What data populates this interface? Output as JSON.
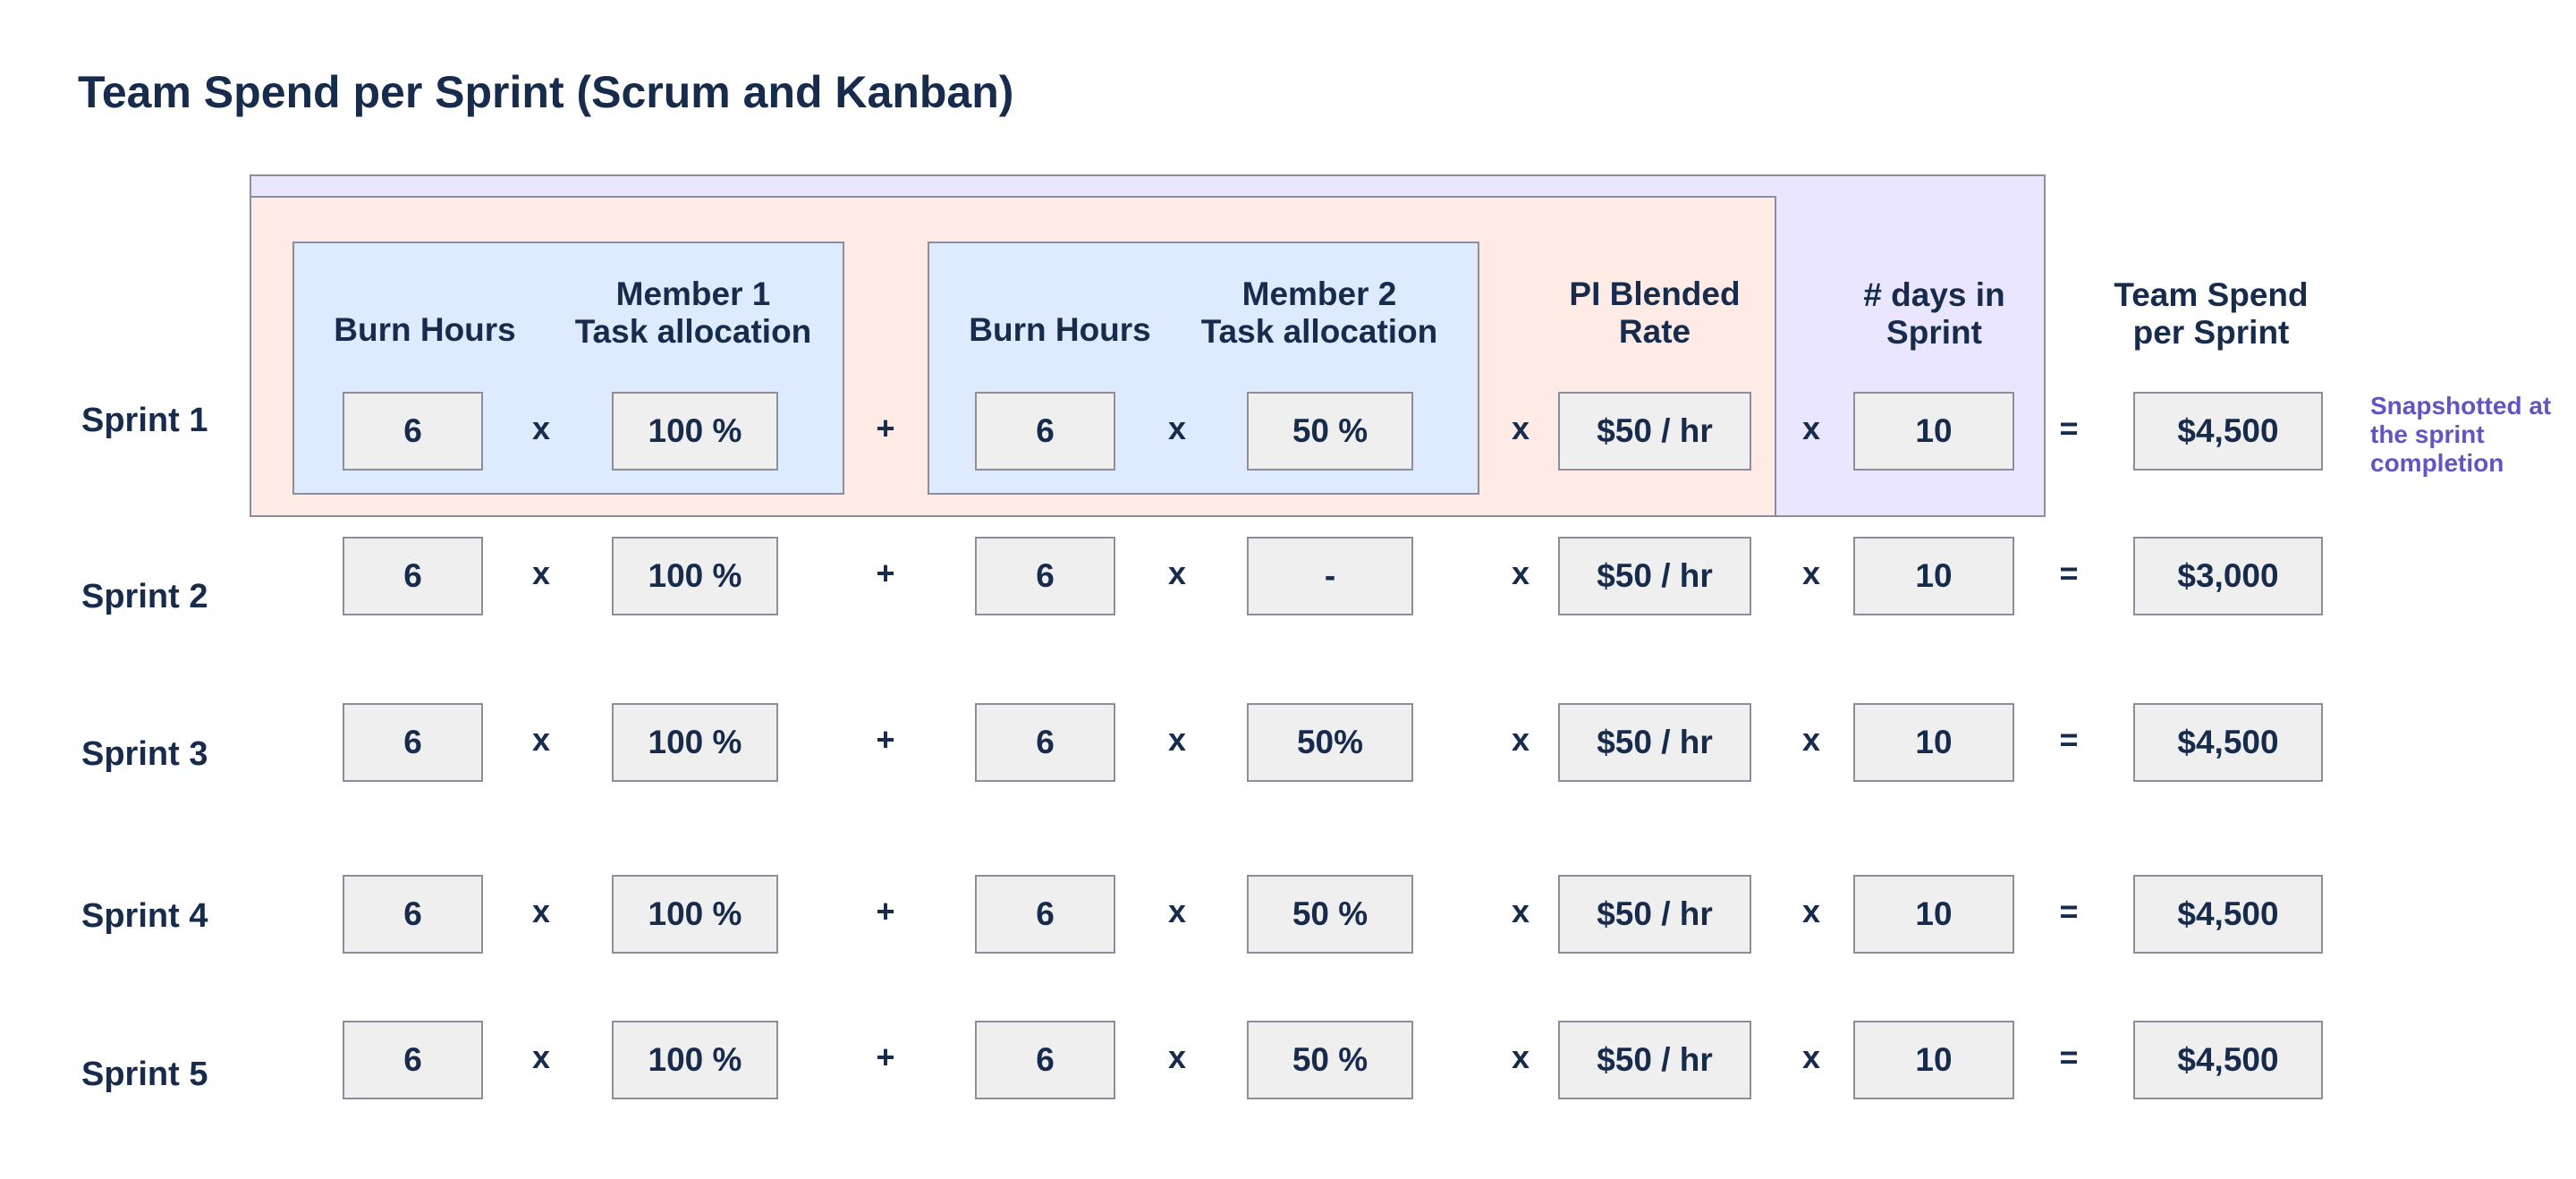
{
  "title": "Team Spend per Sprint (Scrum and Kanban)",
  "headers": {
    "burn_hours_1": "Burn Hours",
    "member1_task_allocation": "Member 1\nTask allocation",
    "burn_hours_2": "Burn Hours",
    "member2_task_allocation": "Member 2\nTask allocation",
    "pi_blended_rate": "PI Blended\nRate",
    "days_in_sprint": "# days in\nSprint",
    "team_spend_per_sprint": "Team Spend\nper Sprint"
  },
  "operators": {
    "times": "x",
    "plus": "+",
    "equals": "="
  },
  "note": "Snapshotted at the sprint completion",
  "colors": {
    "title": "#172B4D",
    "outer_frame": "#EAE6FF",
    "middle_frame": "#FFEBE6",
    "member_frame": "#DEEBFF",
    "cell": "#EFEFEF",
    "note": "#6554C0"
  },
  "rows": [
    {
      "label": "Sprint 1",
      "m1_hours": "6",
      "m1_alloc": "100 %",
      "m2_hours": "6",
      "m2_alloc": "50 %",
      "rate": "$50 / hr",
      "days": "10",
      "total": "$4,500"
    },
    {
      "label": "Sprint 2",
      "m1_hours": "6",
      "m1_alloc": "100 %",
      "m2_hours": "6",
      "m2_alloc": "-",
      "rate": "$50 / hr",
      "days": "10",
      "total": "$3,000"
    },
    {
      "label": "Sprint 3",
      "m1_hours": "6",
      "m1_alloc": "100 %",
      "m2_hours": "6",
      "m2_alloc": "50%",
      "rate": "$50 / hr",
      "days": "10",
      "total": "$4,500"
    },
    {
      "label": "Sprint 4",
      "m1_hours": "6",
      "m1_alloc": "100 %",
      "m2_hours": "6",
      "m2_alloc": "50 %",
      "rate": "$50 / hr",
      "days": "10",
      "total": "$4,500"
    },
    {
      "label": "Sprint 5",
      "m1_hours": "6",
      "m1_alloc": "100 %",
      "m2_hours": "6",
      "m2_alloc": "50 %",
      "rate": "$50 / hr",
      "days": "10",
      "total": "$4,500"
    }
  ]
}
